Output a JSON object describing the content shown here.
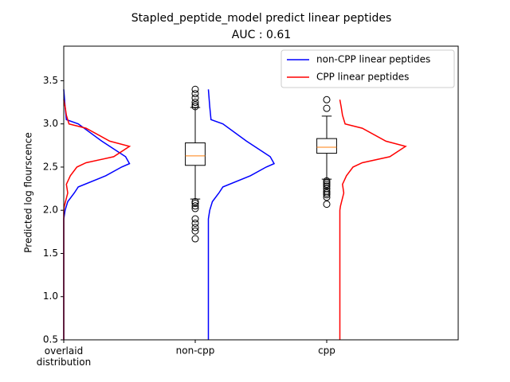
{
  "chart_data": {
    "type": "box_density",
    "title": "Stapled_peptide_model predict linear peptides",
    "subtitle": "AUC : 0.61",
    "ylabel": "Predicted log flourscence",
    "categories": [
      "overlaid\ndistribution",
      "non-cpp",
      "cpp"
    ],
    "xlim": [
      0,
      3
    ],
    "ylim": [
      0.5,
      3.9
    ],
    "yticks": [
      0.5,
      {
        "value": 1,
        "label": "1.0"
      },
      1.5,
      {
        "value": 2,
        "label": "2.0"
      },
      2.5,
      {
        "value": 3,
        "label": "3.0"
      },
      3.5
    ],
    "legend": "upper right",
    "box_color": "#000000",
    "median_color": "#ff7f0e",
    "boxes": [
      null,
      {
        "q1": 2.52,
        "median": 2.63,
        "q3": 2.78,
        "whislo": 2.13,
        "whishi": 3.19,
        "fliers": [
          3.4,
          3.35,
          3.3,
          3.25,
          3.22,
          3.2,
          2.1,
          2.08,
          2.05,
          2.02,
          1.9,
          1.85,
          1.8,
          1.76,
          1.67
        ]
      },
      {
        "q1": 2.66,
        "median": 2.73,
        "q3": 2.83,
        "whislo": 2.36,
        "whishi": 3.09,
        "fliers": [
          3.28,
          3.18,
          2.34,
          2.32,
          2.3,
          2.28,
          2.25,
          2.22,
          2.2,
          2.18,
          2.15,
          2.07
        ]
      }
    ],
    "series": [
      {
        "name": "non-CPP linear peptides",
        "color": "#0000ff",
        "category": 1,
        "y": [
          0.5,
          1.9,
          2.0,
          2.1,
          2.2,
          2.27,
          2.4,
          2.5,
          2.54,
          2.62,
          2.8,
          3.0,
          3.05,
          3.2,
          3.4
        ],
        "values": [
          0,
          0,
          0.01,
          0.03,
          0.08,
          0.11,
          0.32,
          0.44,
          0.5,
          0.47,
          0.29,
          0.11,
          0.02,
          0.01,
          0
        ]
      },
      {
        "name": "CPP linear peptides",
        "color": "#ff0000",
        "category": 2,
        "y": [
          0.5,
          2.0,
          2.05,
          2.2,
          2.3,
          2.4,
          2.5,
          2.55,
          2.62,
          2.74,
          2.8,
          2.95,
          3.0,
          3.1,
          3.2,
          3.28
        ],
        "values": [
          0,
          0,
          0.005,
          0.03,
          0.02,
          0.05,
          0.1,
          0.17,
          0.38,
          0.5,
          0.35,
          0.17,
          0.04,
          0.02,
          0.01,
          0
        ]
      }
    ]
  }
}
